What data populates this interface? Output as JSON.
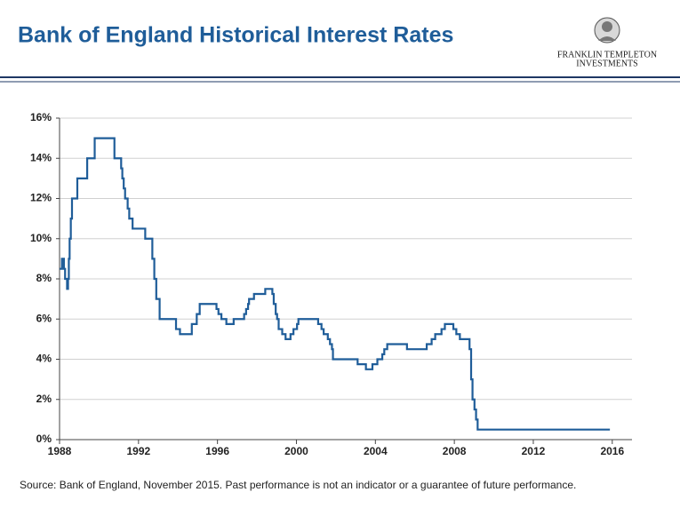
{
  "header": {
    "logo_line1": "FRANKLIN TEMPLETON",
    "logo_line2": "INVESTMENTS"
  },
  "chart_data": {
    "type": "line",
    "step": true,
    "title": "Bank of England Historical Interest Rates",
    "source": "Source:  Bank of England, November 2015. Past performance is not an indicator or a guarantee of future performance.",
    "color": "#1f5d99",
    "grid": true,
    "xlim": [
      1988,
      2017
    ],
    "xticks": [
      1988,
      1992,
      1996,
      2000,
      2004,
      2008,
      2012,
      2016
    ],
    "ylim": [
      0,
      16
    ],
    "yticks": [
      {
        "value": 0,
        "label": "0%"
      },
      {
        "value": 2,
        "label": "2%"
      },
      {
        "value": 4,
        "label": "4%"
      },
      {
        "value": 6,
        "label": "6%"
      },
      {
        "value": 8,
        "label": "8%"
      },
      {
        "value": 10,
        "label": "10%"
      },
      {
        "value": 12,
        "label": "12%"
      },
      {
        "value": 14,
        "label": "14%"
      },
      {
        "value": 16,
        "label": "16%"
      }
    ],
    "x": [
      1988.0,
      1988.12,
      1988.22,
      1988.28,
      1988.38,
      1988.43,
      1988.47,
      1988.51,
      1988.57,
      1988.63,
      1988.9,
      1989.4,
      1989.78,
      1990.78,
      1991.12,
      1991.18,
      1991.25,
      1991.32,
      1991.45,
      1991.53,
      1991.7,
      1992.34,
      1992.7,
      1992.8,
      1992.9,
      1993.07,
      1993.9,
      1994.1,
      1994.7,
      1994.95,
      1995.1,
      1995.95,
      1996.05,
      1996.2,
      1996.45,
      1996.82,
      1997.35,
      1997.45,
      1997.55,
      1997.6,
      1997.85,
      1998.42,
      1998.78,
      1998.85,
      1998.95,
      1999.02,
      1999.1,
      1999.28,
      1999.45,
      1999.7,
      1999.85,
      2000.03,
      2000.1,
      2001.1,
      2001.27,
      2001.38,
      2001.59,
      2001.7,
      2001.8,
      2001.85,
      2003.1,
      2003.52,
      2003.85,
      2004.1,
      2004.35,
      2004.45,
      2004.6,
      2005.6,
      2006.6,
      2006.85,
      2007.03,
      2007.35,
      2007.52,
      2007.95,
      2008.1,
      2008.28,
      2008.77,
      2008.85,
      2008.92,
      2009.02,
      2009.1,
      2009.18,
      2015.88
    ],
    "values": [
      8.5,
      9,
      8.5,
      8,
      7.5,
      8,
      9,
      10,
      11,
      12,
      13,
      14,
      15,
      14,
      13.5,
      13,
      12.5,
      12,
      11.5,
      11,
      10.5,
      10,
      9,
      8,
      7,
      6,
      5.5,
      5.25,
      5.75,
      6.25,
      6.75,
      6.5,
      6.25,
      6,
      5.75,
      6,
      6.25,
      6.5,
      6.75,
      7,
      7.25,
      7.5,
      7.25,
      6.75,
      6.25,
      6,
      5.5,
      5.25,
      5,
      5.25,
      5.5,
      5.75,
      6,
      5.75,
      5.5,
      5.25,
      5,
      4.75,
      4.5,
      4,
      3.75,
      3.5,
      3.75,
      4,
      4.25,
      4.5,
      4.75,
      4.5,
      4.75,
      5,
      5.25,
      5.5,
      5.75,
      5.5,
      5.25,
      5,
      4.5,
      3,
      2,
      1.5,
      1,
      0.5,
      0.5
    ]
  }
}
